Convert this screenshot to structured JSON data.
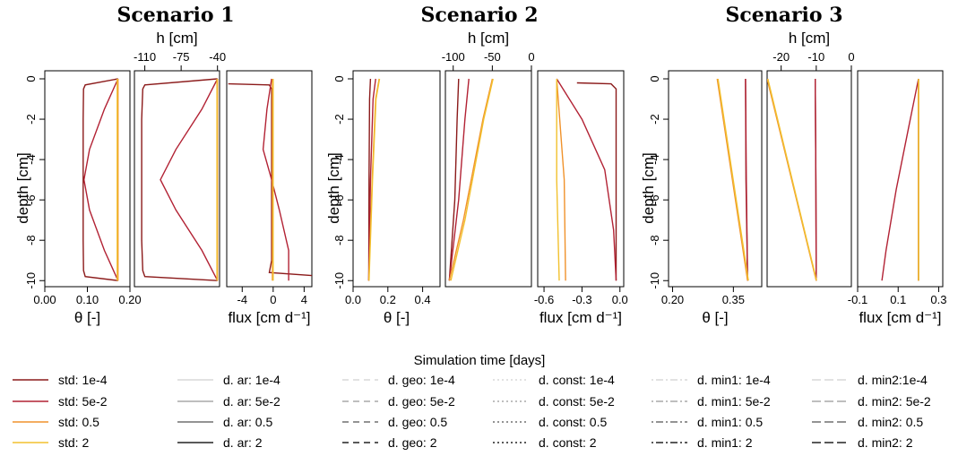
{
  "colors": {
    "std_1e4": "#8b1a1a",
    "std_5e2": "#b22234",
    "std_05": "#f0922b",
    "std_2": "#f2c12e",
    "ar_1e4": "#d8d8d8",
    "ar_5e2": "#a8a8a8",
    "ar_05": "#707070",
    "ar_2": "#222222"
  },
  "chart_data": [
    {
      "scenario": "Scenario 1",
      "ylabel": "depth [cm]",
      "ylim": [
        -10.3,
        0.4
      ],
      "yticks": [
        "0",
        "-2",
        "-4",
        "-6",
        "-8",
        "-10"
      ],
      "panels": [
        {
          "type": "line",
          "xlabel": "θ [-]",
          "xlim": [
            0.0,
            0.2
          ],
          "xticks": [
            "0.00",
            "0.10",
            "0.20"
          ],
          "tick_side": "bottom",
          "series": [
            {
              "key": "std_5e2",
              "x": [
                0.172,
                0.14,
                0.105,
                0.092,
                0.105,
                0.14,
                0.172
              ],
              "y": [
                0,
                -1.5,
                -3.5,
                -5.0,
                -6.5,
                -8.5,
                -10
              ]
            },
            {
              "key": "std_1e4",
              "x": [
                0.172,
                0.095,
                0.091,
                0.09,
                0.09,
                0.091,
                0.095,
                0.172
              ],
              "y": [
                0,
                -0.3,
                -0.5,
                -2,
                -8,
                -9.5,
                -9.8,
                -10
              ]
            },
            {
              "key": "std_05",
              "x": [
                0.172,
                0.172
              ],
              "y": [
                0,
                -10
              ]
            },
            {
              "key": "std_2",
              "x": [
                0.17,
                0.17
              ],
              "y": [
                0,
                -10
              ]
            }
          ]
        },
        {
          "type": "line",
          "xlabel": "h [cm]",
          "xlim": [
            -120,
            -38
          ],
          "xticks": [
            "-110",
            "-75",
            "-40"
          ],
          "tick_side": "top",
          "series": [
            {
              "key": "std_5e2",
              "x": [
                -40,
                -55,
                -80,
                -95,
                -80,
                -55,
                -40
              ],
              "y": [
                0,
                -1.5,
                -3.5,
                -5.0,
                -6.5,
                -8.5,
                -10
              ]
            },
            {
              "key": "std_1e4",
              "x": [
                -40,
                -110,
                -112,
                -113,
                -113,
                -112,
                -110,
                -40
              ],
              "y": [
                0,
                -0.3,
                -0.5,
                -2,
                -8,
                -9.5,
                -9.8,
                -10
              ]
            },
            {
              "key": "std_05",
              "x": [
                -40,
                -40
              ],
              "y": [
                0,
                -10
              ]
            },
            {
              "key": "std_2",
              "x": [
                -40.5,
                -40.5
              ],
              "y": [
                0,
                -10
              ]
            }
          ]
        },
        {
          "type": "line",
          "xlabel": "flux [cm d⁻¹]",
          "xlim": [
            -6,
            5
          ],
          "xticks": [
            "-4",
            "0",
            "4"
          ],
          "tick_side": "bottom",
          "series": [
            {
              "key": "std_1e4",
              "x": [
                -5.8,
                -0.5,
                -0.2,
                -0.2,
                -0.2,
                -0.5,
                5.0
              ],
              "y": [
                -0.25,
                -0.3,
                -0.5,
                -2,
                -9,
                -9.6,
                -9.75
              ]
            },
            {
              "key": "std_5e2",
              "x": [
                -0.2,
                -0.8,
                -1.3,
                -0.2,
                0.8,
                2.0,
                2.0
              ],
              "y": [
                0,
                -1.5,
                -3.5,
                -5.0,
                -6.5,
                -8.5,
                -10
              ]
            },
            {
              "key": "std_05",
              "x": [
                -0.1,
                -0.1
              ],
              "y": [
                0,
                -10
              ]
            },
            {
              "key": "std_2",
              "x": [
                0.0,
                0.0
              ],
              "y": [
                0,
                -10
              ]
            }
          ]
        }
      ]
    },
    {
      "scenario": "Scenario 2",
      "ylabel": "depth [cm]",
      "ylim": [
        -10.3,
        0.4
      ],
      "yticks": [
        "0",
        "-2",
        "-4",
        "-6",
        "-8",
        "-10"
      ],
      "panels": [
        {
          "type": "line",
          "xlabel": "θ [-]",
          "xlim": [
            0.0,
            0.5
          ],
          "xticks": [
            "0.0",
            "0.2",
            "0.4"
          ],
          "tick_side": "bottom",
          "series": [
            {
              "key": "std_1e4",
              "x": [
                0.09,
                0.092,
                0.095,
                0.1
              ],
              "y": [
                -10,
                -5,
                -1,
                0
              ]
            },
            {
              "key": "std_5e2",
              "x": [
                0.09,
                0.1,
                0.115,
                0.13
              ],
              "y": [
                -10,
                -5,
                -1,
                0
              ]
            },
            {
              "key": "std_05",
              "x": [
                0.09,
                0.11,
                0.13,
                0.15
              ],
              "y": [
                -10,
                -5,
                -1,
                0
              ]
            },
            {
              "key": "std_2",
              "x": [
                0.092,
                0.112,
                0.132,
                0.152
              ],
              "y": [
                -10,
                -5,
                -1,
                0
              ]
            }
          ]
        },
        {
          "type": "line",
          "xlabel": "h [cm]",
          "xlim": [
            -110,
            0
          ],
          "xticks": [
            "-100",
            "-50",
            "0"
          ],
          "tick_side": "top",
          "series": [
            {
              "key": "std_1e4",
              "x": [
                -105,
                -98,
                -95,
                -93
              ],
              "y": [
                -10,
                -6,
                -2,
                0
              ]
            },
            {
              "key": "std_5e2",
              "x": [
                -105,
                -93,
                -85,
                -80
              ],
              "y": [
                -10,
                -6,
                -2,
                0
              ]
            },
            {
              "key": "std_05",
              "x": [
                -105,
                -87,
                -62,
                -50
              ],
              "y": [
                -10,
                -7,
                -2,
                0
              ]
            },
            {
              "key": "std_2",
              "x": [
                -103,
                -85,
                -61,
                -49
              ],
              "y": [
                -10,
                -7,
                -2,
                0
              ]
            }
          ]
        },
        {
          "type": "line",
          "xlabel": "flux [cm d⁻¹]",
          "xlim": [
            -0.65,
            0.03
          ],
          "xticks": [
            "-0.6",
            "-0.3",
            "0.0"
          ],
          "tick_side": "bottom",
          "series": [
            {
              "key": "std_1e4",
              "x": [
                -0.34,
                -0.07,
                -0.03,
                -0.03,
                -0.03
              ],
              "y": [
                -0.2,
                -0.25,
                -0.5,
                -3,
                -10
              ]
            },
            {
              "key": "std_5e2",
              "x": [
                -0.5,
                -0.3,
                -0.12,
                -0.05,
                -0.03
              ],
              "y": [
                0,
                -2,
                -4.5,
                -7.5,
                -10
              ]
            },
            {
              "key": "std_05",
              "x": [
                -0.5,
                -0.44,
                -0.43
              ],
              "y": [
                0,
                -5,
                -10
              ]
            },
            {
              "key": "std_2",
              "x": [
                -0.5,
                -0.5,
                -0.48
              ],
              "y": [
                0,
                -5,
                -10
              ]
            }
          ]
        }
      ]
    },
    {
      "scenario": "Scenario 3",
      "ylabel": "depth [cm]",
      "ylim": [
        -10.3,
        0.4
      ],
      "yticks": [
        "0",
        "-2",
        "-4",
        "-6",
        "-8",
        "-10"
      ],
      "panels": [
        {
          "type": "line",
          "xlabel": "θ [-]",
          "xlim": [
            0.19,
            0.42
          ],
          "xticks": [
            "0.20",
            "0.35"
          ],
          "tick_side": "bottom",
          "series": [
            {
              "key": "std_1e4",
              "x": [
                0.38,
                0.381,
                0.385
              ],
              "y": [
                0,
                -5,
                -10
              ]
            },
            {
              "key": "std_5e2",
              "x": [
                0.38,
                0.382,
                0.385
              ],
              "y": [
                0,
                -5,
                -10
              ]
            },
            {
              "key": "std_05",
              "x": [
                0.31,
                0.385
              ],
              "y": [
                0,
                -10
              ]
            },
            {
              "key": "std_2",
              "x": [
                0.312,
                0.387
              ],
              "y": [
                0,
                -10
              ]
            }
          ]
        },
        {
          "type": "line",
          "xlabel": "h [cm]",
          "xlim": [
            -24,
            0
          ],
          "xticks": [
            "-20",
            "-10",
            "0"
          ],
          "tick_side": "top",
          "series": [
            {
              "key": "std_1e4",
              "x": [
                -10.3,
                -10.1,
                -10.0
              ],
              "y": [
                0,
                -5,
                -10
              ]
            },
            {
              "key": "std_5e2",
              "x": [
                -10.3,
                -10.1,
                -10.0
              ],
              "y": [
                0,
                -5,
                -10
              ]
            },
            {
              "key": "std_05",
              "x": [
                -24,
                -10
              ],
              "y": [
                0,
                -10
              ]
            },
            {
              "key": "std_2",
              "x": [
                -23.8,
                -9.9
              ],
              "y": [
                0,
                -10
              ]
            }
          ]
        },
        {
          "type": "line",
          "xlabel": "flux [cm d⁻¹]",
          "xlim": [
            -0.1,
            0.32
          ],
          "xticks": [
            "-0.1",
            "0.1",
            "0.3"
          ],
          "tick_side": "bottom",
          "series": [
            {
              "key": "std_5e2",
              "x": [
                0.2,
                0.15,
                0.09,
                0.04,
                0.02
              ],
              "y": [
                0,
                -2.5,
                -5.5,
                -8.5,
                -10
              ]
            },
            {
              "key": "std_1e4",
              "x": [
                0.2,
                0.2
              ],
              "y": [
                0,
                -10
              ]
            },
            {
              "key": "std_05",
              "x": [
                0.2,
                0.2
              ],
              "y": [
                0,
                -10
              ]
            },
            {
              "key": "std_2",
              "x": [
                0.201,
                0.201
              ],
              "y": [
                0,
                -10
              ]
            }
          ]
        }
      ]
    }
  ],
  "legend": {
    "title": "Simulation time [days]",
    "columns": [
      [
        {
          "label": "std: 1e-4",
          "color": "#8b1a1a",
          "dash": "solid"
        },
        {
          "label": "std: 5e-2",
          "color": "#b22234",
          "dash": "solid"
        },
        {
          "label": "std: 0.5",
          "color": "#f0922b",
          "dash": "solid"
        },
        {
          "label": "std: 2",
          "color": "#f2c12e",
          "dash": "solid"
        }
      ],
      [
        {
          "label": "d. ar: 1e-4",
          "color": "#d8d8d8",
          "dash": "solid"
        },
        {
          "label": "d. ar: 5e-2",
          "color": "#a8a8a8",
          "dash": "solid"
        },
        {
          "label": "d. ar: 0.5",
          "color": "#707070",
          "dash": "solid"
        },
        {
          "label": "d. ar: 2",
          "color": "#222222",
          "dash": "solid"
        }
      ],
      [
        {
          "label": "d. geo: 1e-4",
          "color": "#d8d8d8",
          "dash": "dashed"
        },
        {
          "label": "d. geo: 5e-2",
          "color": "#a8a8a8",
          "dash": "dashed"
        },
        {
          "label": "d. geo: 0.5",
          "color": "#707070",
          "dash": "dashed"
        },
        {
          "label": "d. geo: 2",
          "color": "#222222",
          "dash": "dashed"
        }
      ],
      [
        {
          "label": "d. const: 1e-4",
          "color": "#d8d8d8",
          "dash": "dotted"
        },
        {
          "label": "d. const: 5e-2",
          "color": "#a8a8a8",
          "dash": "dotted"
        },
        {
          "label": "d. const: 0.5",
          "color": "#707070",
          "dash": "dotted"
        },
        {
          "label": "d. const: 2",
          "color": "#222222",
          "dash": "dotted"
        }
      ],
      [
        {
          "label": "d. min1: 1e-4",
          "color": "#d8d8d8",
          "dash": "dotdash"
        },
        {
          "label": "d. min1: 5e-2",
          "color": "#a8a8a8",
          "dash": "dotdash"
        },
        {
          "label": "d. min1: 0.5",
          "color": "#707070",
          "dash": "dotdash"
        },
        {
          "label": "d. min1: 2",
          "color": "#222222",
          "dash": "dotdash"
        }
      ],
      [
        {
          "label": "d. min2:1e-4",
          "color": "#d8d8d8",
          "dash": "longdash"
        },
        {
          "label": "d. min2: 5e-2",
          "color": "#a8a8a8",
          "dash": "longdash"
        },
        {
          "label": "d. min2: 0.5",
          "color": "#707070",
          "dash": "longdash"
        },
        {
          "label": "d. min2: 2",
          "color": "#222222",
          "dash": "longdash"
        }
      ]
    ]
  }
}
